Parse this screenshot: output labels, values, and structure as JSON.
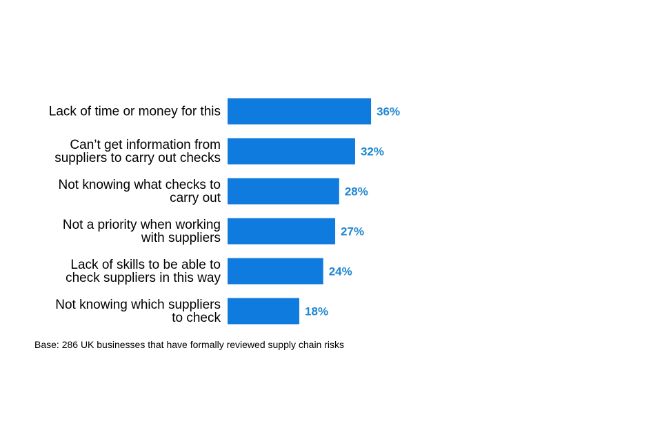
{
  "chart_data": {
    "type": "bar",
    "orientation": "horizontal",
    "categories": [
      [
        "Lack of time or money for this"
      ],
      [
        "Can’t get information from",
        "suppliers to carry out checks"
      ],
      [
        "Not knowing what checks to",
        "carry out"
      ],
      [
        "Not a priority when working",
        "with suppliers"
      ],
      [
        "Lack of skills to be able to",
        "check suppliers in this way"
      ],
      [
        "Not knowing which suppliers",
        "to check"
      ]
    ],
    "values": [
      36,
      32,
      28,
      27,
      24,
      18
    ],
    "value_labels": [
      "36%",
      "32%",
      "28%",
      "27%",
      "24%",
      "18%"
    ],
    "unit": "%",
    "xlim": [
      0,
      100
    ],
    "grid": false,
    "legend": "none",
    "bar_color": "#0f7bdf",
    "label_color": "#1f86d1"
  },
  "base_note": "Base: 286 UK businesses that have formally reviewed supply chain risks"
}
